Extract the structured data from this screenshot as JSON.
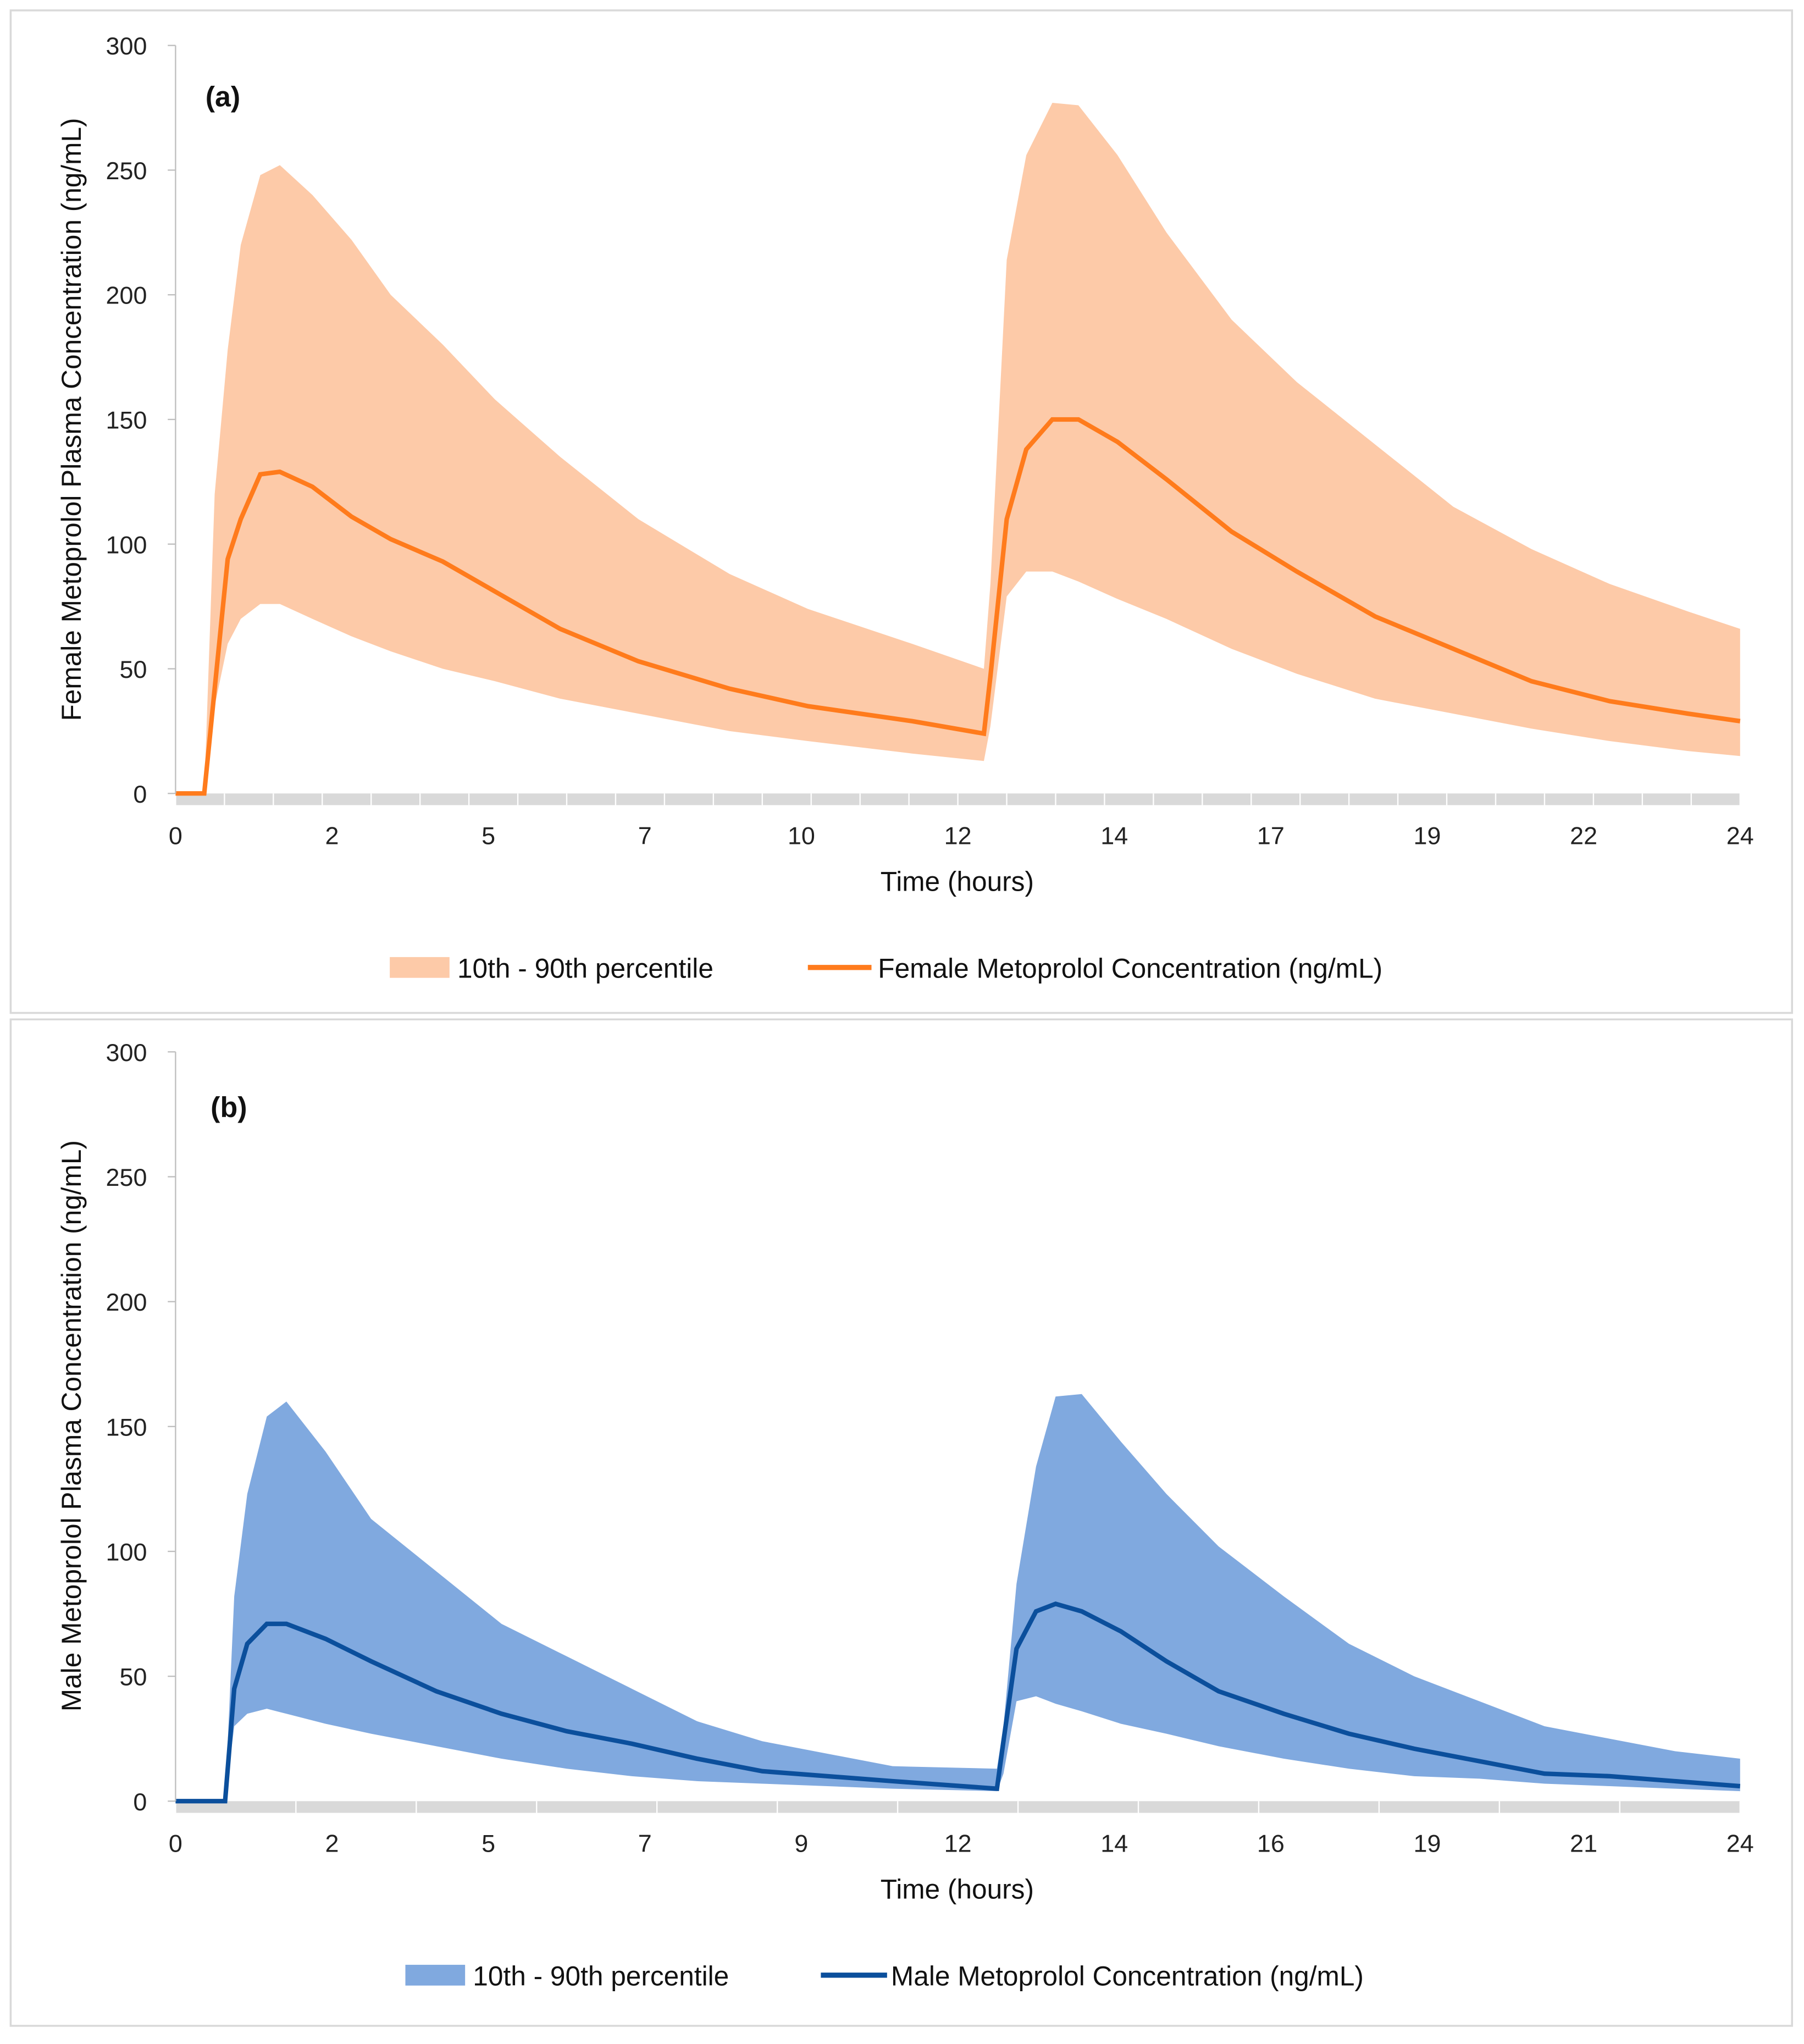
{
  "chart_data": [
    {
      "type": "area",
      "panel_label": "(a)",
      "title": "",
      "xlabel": "Time (hours)",
      "ylabel": "Female Metoprolol Plasma Concentration (ng/mL)",
      "xlim": [
        0,
        24
      ],
      "ylim": [
        0,
        300
      ],
      "yticks": [
        "0",
        "50",
        "100",
        "150",
        "200",
        "250",
        "300"
      ],
      "xtick_labels": [
        "0",
        "2",
        "5",
        "7",
        "10",
        "12",
        "14",
        "17",
        "19",
        "22",
        "24"
      ],
      "grid": false,
      "legend_position": "bottom",
      "colors": {
        "line": "#FF7B1C",
        "band": "#FDCAA8"
      },
      "legend": [
        "10th - 90th percentile",
        "Female Metoprolol Concentration (ng/mL)"
      ],
      "x": [
        0,
        0.44,
        0.6,
        0.8,
        1.0,
        1.3,
        1.6,
        2.1,
        2.7,
        3.3,
        4.1,
        4.9,
        5.9,
        7.1,
        8.5,
        9.7,
        11.3,
        12.4,
        12.5,
        12.75,
        13.05,
        13.45,
        13.85,
        14.45,
        15.2,
        16.2,
        17.2,
        18.4,
        19.6,
        20.8,
        22.0,
        23.2,
        24.0
      ],
      "series": [
        {
          "name": "Female Metoprolol Concentration (ng/mL)",
          "values": [
            0,
            0,
            42,
            94,
            110,
            128,
            129,
            123,
            111,
            102,
            93,
            81,
            66,
            53,
            42,
            35,
            29,
            24,
            47,
            110,
            138,
            150,
            150,
            141,
            126,
            105,
            89,
            71,
            58,
            45,
            37,
            32,
            29
          ]
        },
        {
          "name": "90th percentile",
          "values": [
            0,
            0,
            120,
            178,
            220,
            248,
            252,
            240,
            222,
            200,
            180,
            158,
            135,
            110,
            88,
            74,
            60,
            50,
            84,
            214,
            256,
            277,
            276,
            256,
            225,
            190,
            165,
            140,
            115,
            98,
            84,
            73,
            66
          ]
        },
        {
          "name": "10th percentile",
          "values": [
            0,
            0,
            35,
            60,
            70,
            76,
            76,
            70,
            63,
            57,
            50,
            45,
            38,
            32,
            25,
            21,
            16,
            13,
            27,
            79,
            89,
            89,
            85,
            78,
            70,
            58,
            48,
            38,
            32,
            26,
            21,
            17,
            15
          ]
        }
      ]
    },
    {
      "type": "area",
      "panel_label": "(b)",
      "title": "",
      "xlabel": "Time (hours)",
      "ylabel": "Male Metoprolol Plasma Concentration (ng/mL)",
      "xlim": [
        0,
        24
      ],
      "ylim": [
        0,
        300
      ],
      "yticks": [
        "0",
        "50",
        "100",
        "150",
        "200",
        "250",
        "300"
      ],
      "xtick_labels": [
        "0",
        "2",
        "5",
        "7",
        "9",
        "12",
        "14",
        "16",
        "19",
        "21",
        "24"
      ],
      "grid": false,
      "legend_position": "bottom",
      "colors": {
        "line": "#0B4F9C",
        "band": "#80A9DF"
      },
      "legend": [
        "10th - 90th percentile",
        "Male Metoprolol Concentration (ng/mL)"
      ],
      "x": [
        0,
        0.76,
        0.9,
        1.1,
        1.4,
        1.7,
        2.3,
        3,
        4,
        5,
        6,
        7,
        8,
        9,
        10,
        11,
        12.6,
        12.7,
        12.9,
        13.2,
        13.5,
        13.9,
        14.5,
        15.2,
        16,
        17,
        18,
        19,
        20,
        21,
        22,
        23,
        24
      ],
      "series": [
        {
          "name": "Male Metoprolol Concentration (ng/mL)",
          "values": [
            0,
            0,
            45,
            63,
            71,
            71,
            65,
            56,
            44,
            35,
            28,
            23,
            17,
            12,
            10,
            8,
            5,
            24,
            61,
            76,
            79,
            76,
            68,
            56,
            44,
            35,
            27,
            21,
            16,
            11,
            10,
            8,
            6
          ]
        },
        {
          "name": "90th percentile",
          "values": [
            0,
            0,
            82,
            123,
            154,
            160,
            140,
            113,
            92,
            71,
            58,
            45,
            32,
            24,
            19,
            14,
            13,
            30,
            87,
            134,
            162,
            163,
            144,
            123,
            102,
            82,
            63,
            50,
            40,
            30,
            25,
            20,
            17
          ]
        },
        {
          "name": "10th percentile",
          "values": [
            0,
            0,
            30,
            35,
            37,
            35,
            31,
            27,
            22,
            17,
            13,
            10,
            8,
            7,
            6,
            5,
            4,
            11,
            40,
            42,
            39,
            36,
            31,
            27,
            22,
            17,
            13,
            10,
            9,
            7,
            6,
            5,
            4
          ]
        }
      ]
    }
  ]
}
